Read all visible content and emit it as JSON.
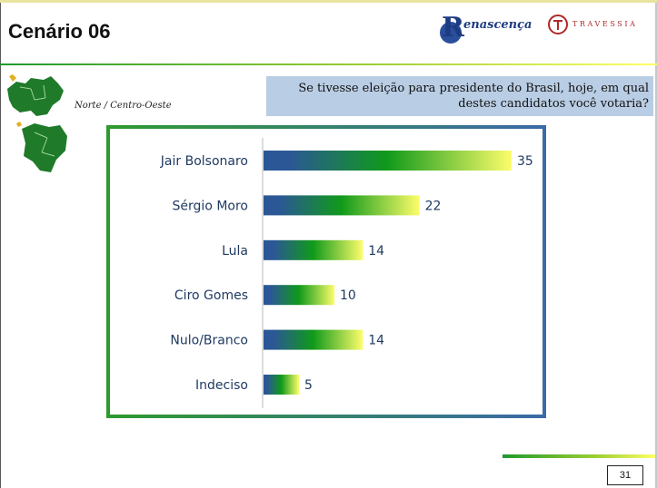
{
  "header": {
    "title": "Cenário 06",
    "logo_renascenca": "enascença",
    "logo_renascenca_initial": "R",
    "logo_travessia": "TRAVESSIA"
  },
  "question": "Se tivesse eleição para presidente do Brasil, hoje, em qual destes candidatos você votaria?",
  "region": "Norte / Centro-Oeste",
  "chart_data": {
    "type": "bar",
    "orientation": "horizontal",
    "categories": [
      "Jair Bolsonaro",
      "Sérgio Moro",
      "Lula",
      "Ciro Gomes",
      "Nulo/Branco",
      "Indeciso"
    ],
    "values": [
      35,
      22,
      14,
      10,
      14,
      5
    ],
    "value_labels": [
      "35",
      "22",
      "14",
      "10",
      "14",
      "5"
    ],
    "xlim": [
      0,
      35
    ],
    "bar_gradient": [
      "#2b5796",
      "#109a1a",
      "#fdfd6a"
    ],
    "grid": false
  },
  "page_number": "31"
}
